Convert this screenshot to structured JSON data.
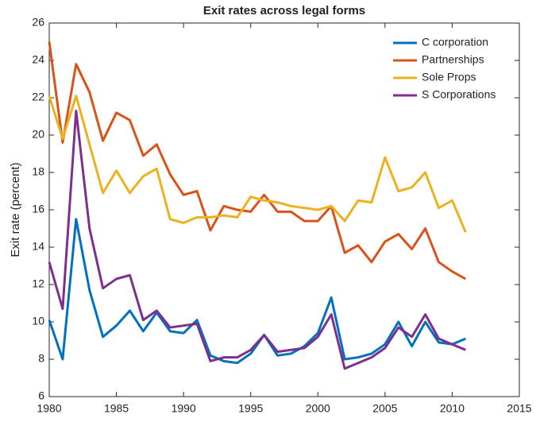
{
  "chart_data": {
    "type": "line",
    "title": "Exit rates across legal forms",
    "ylabel": "Exit rate (percent)",
    "x": [
      1980,
      1981,
      1982,
      1983,
      1984,
      1985,
      1986,
      1987,
      1988,
      1989,
      1990,
      1991,
      1992,
      1993,
      1994,
      1995,
      1996,
      1997,
      1998,
      1999,
      2000,
      2001,
      2002,
      2003,
      2004,
      2005,
      2006,
      2007,
      2008,
      2009,
      2010,
      2011
    ],
    "series": [
      {
        "name": "C corporation",
        "color": "#0072BD",
        "values": [
          10.1,
          8.0,
          15.5,
          11.7,
          9.2,
          9.8,
          10.6,
          9.5,
          10.5,
          9.5,
          9.4,
          10.1,
          8.2,
          7.9,
          7.8,
          8.3,
          9.3,
          8.2,
          8.3,
          8.7,
          9.4,
          11.3,
          8.0,
          8.1,
          8.3,
          8.8,
          10.0,
          8.7,
          10.0,
          8.9,
          8.8,
          9.1
        ]
      },
      {
        "name": "Partnerships",
        "color": "#D95319",
        "values": [
          25.0,
          19.6,
          23.8,
          22.3,
          19.7,
          21.2,
          20.8,
          18.9,
          19.5,
          17.9,
          16.8,
          17.0,
          14.9,
          16.2,
          16.0,
          15.9,
          16.8,
          15.9,
          15.9,
          15.4,
          15.4,
          16.2,
          13.7,
          14.1,
          13.2,
          14.3,
          14.7,
          13.9,
          15.0,
          13.2,
          12.7,
          12.3
        ]
      },
      {
        "name": "Sole Props",
        "color": "#EDB120",
        "values": [
          22.1,
          19.8,
          22.1,
          19.5,
          16.9,
          18.1,
          16.9,
          17.8,
          18.2,
          15.5,
          15.3,
          15.6,
          15.6,
          15.7,
          15.6,
          16.7,
          16.5,
          16.4,
          16.2,
          16.1,
          16.0,
          16.2,
          15.4,
          16.5,
          16.4,
          18.8,
          17.0,
          17.2,
          18.0,
          16.1,
          16.5,
          14.8
        ]
      },
      {
        "name": "S Corporations",
        "color": "#7E2F8E",
        "values": [
          13.2,
          10.7,
          21.3,
          15.0,
          11.8,
          12.3,
          12.5,
          10.1,
          10.6,
          9.7,
          9.8,
          9.9,
          7.9,
          8.1,
          8.1,
          8.5,
          9.3,
          8.4,
          8.5,
          8.6,
          9.2,
          10.4,
          7.5,
          7.8,
          8.1,
          8.6,
          9.7,
          9.2,
          10.4,
          9.1,
          8.8,
          8.5
        ]
      }
    ],
    "xlim": [
      1980,
      2015
    ],
    "xticks": [
      1980,
      1985,
      1990,
      1995,
      2000,
      2005,
      2010,
      2015
    ],
    "ylim": [
      6,
      26
    ],
    "yticks": [
      6,
      8,
      10,
      12,
      14,
      16,
      18,
      20,
      22,
      24,
      26
    ],
    "legend": "top-right"
  }
}
